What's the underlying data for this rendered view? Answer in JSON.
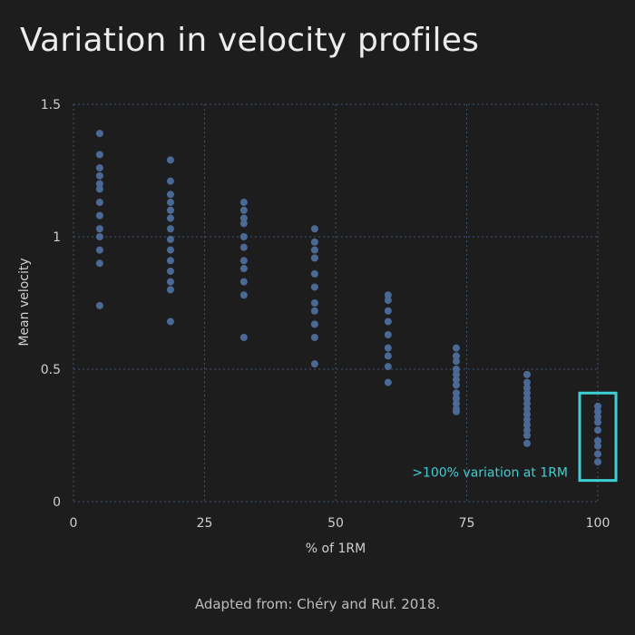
{
  "title": "Variation in velocity profiles",
  "source": "Adapted from: Chéry and Ruf. 2018.",
  "colors": {
    "background": "#1d1d1e",
    "point": "#4a6a95",
    "grid": "#3e5675",
    "highlight": "#3ecfd4",
    "text": "#cfcfcf"
  },
  "chart_data": {
    "type": "scatter",
    "xlabel": "% of 1RM",
    "ylabel": "Mean velocity",
    "xlim": [
      0,
      100
    ],
    "ylim": [
      0,
      1.5
    ],
    "xticks": [
      0,
      25,
      50,
      75,
      100
    ],
    "xtick_labels": [
      "0",
      "25",
      "50",
      "75",
      "100"
    ],
    "yticks": [
      0,
      0.5,
      1,
      1.5
    ],
    "ytick_labels": [
      "0",
      "0.5",
      "1",
      "1.5"
    ],
    "grid": true,
    "groups": [
      {
        "x": 5,
        "y": [
          1.39,
          1.31,
          1.26,
          1.23,
          1.2,
          1.18,
          1.13,
          1.08,
          1.03,
          1.0,
          0.95,
          0.9,
          0.74
        ]
      },
      {
        "x": 18.5,
        "y": [
          1.29,
          1.21,
          1.16,
          1.13,
          1.1,
          1.07,
          1.03,
          0.99,
          0.95,
          0.91,
          0.87,
          0.83,
          0.8,
          0.68
        ]
      },
      {
        "x": 32.5,
        "y": [
          1.13,
          1.1,
          1.07,
          1.05,
          1.0,
          0.96,
          0.91,
          0.88,
          0.83,
          0.78,
          0.62
        ]
      },
      {
        "x": 46,
        "y": [
          1.03,
          0.98,
          0.95,
          0.92,
          0.86,
          0.81,
          0.75,
          0.72,
          0.67,
          0.62,
          0.52
        ]
      },
      {
        "x": 60,
        "y": [
          0.78,
          0.76,
          0.72,
          0.68,
          0.63,
          0.58,
          0.55,
          0.51,
          0.45
        ]
      },
      {
        "x": 73,
        "y": [
          0.58,
          0.55,
          0.53,
          0.5,
          0.48,
          0.46,
          0.44,
          0.41,
          0.39,
          0.37,
          0.35,
          0.34
        ]
      },
      {
        "x": 86.5,
        "y": [
          0.48,
          0.45,
          0.43,
          0.41,
          0.39,
          0.37,
          0.35,
          0.33,
          0.31,
          0.29,
          0.27,
          0.25,
          0.22
        ]
      },
      {
        "x": 100,
        "y": [
          0.36,
          0.34,
          0.32,
          0.3,
          0.27,
          0.23,
          0.21,
          0.18,
          0.15
        ]
      }
    ],
    "annotation": {
      "text": ">100% variation at 1RM",
      "x": 100,
      "y_range": [
        0.08,
        0.41
      ]
    }
  }
}
